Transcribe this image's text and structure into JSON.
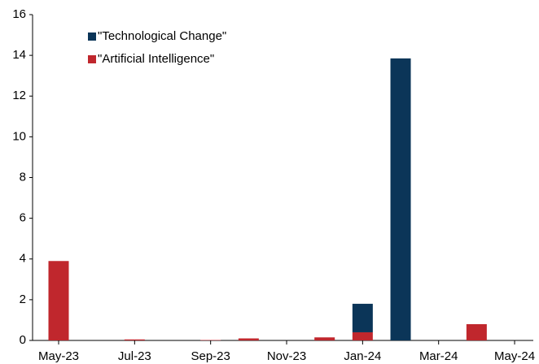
{
  "chart_data": {
    "type": "bar",
    "stacked": true,
    "categories": [
      "May-23",
      null,
      "Jul-23",
      null,
      "Sep-23",
      null,
      "Nov-23",
      null,
      "Jan-24",
      null,
      "Mar-24",
      null,
      "May-24"
    ],
    "series": [
      {
        "name": "\"Technological Change\"",
        "color": "#0b3558",
        "values": [
          0,
          0,
          0,
          0,
          0,
          0,
          0,
          0,
          1.4,
          13.85,
          0,
          0,
          0
        ]
      },
      {
        "name": "\"Artificial Intelligence\"",
        "color": "#c0272d",
        "values": [
          3.9,
          0,
          0.05,
          0,
          0.02,
          0.1,
          0,
          0.15,
          0.4,
          0,
          0,
          0.8,
          0
        ]
      }
    ],
    "stack_order": [
      1,
      0
    ],
    "ylim": [
      0,
      16
    ],
    "yticks": [
      0,
      2,
      4,
      6,
      8,
      10,
      12,
      14,
      16
    ],
    "grid": false,
    "legend": "upper left"
  }
}
